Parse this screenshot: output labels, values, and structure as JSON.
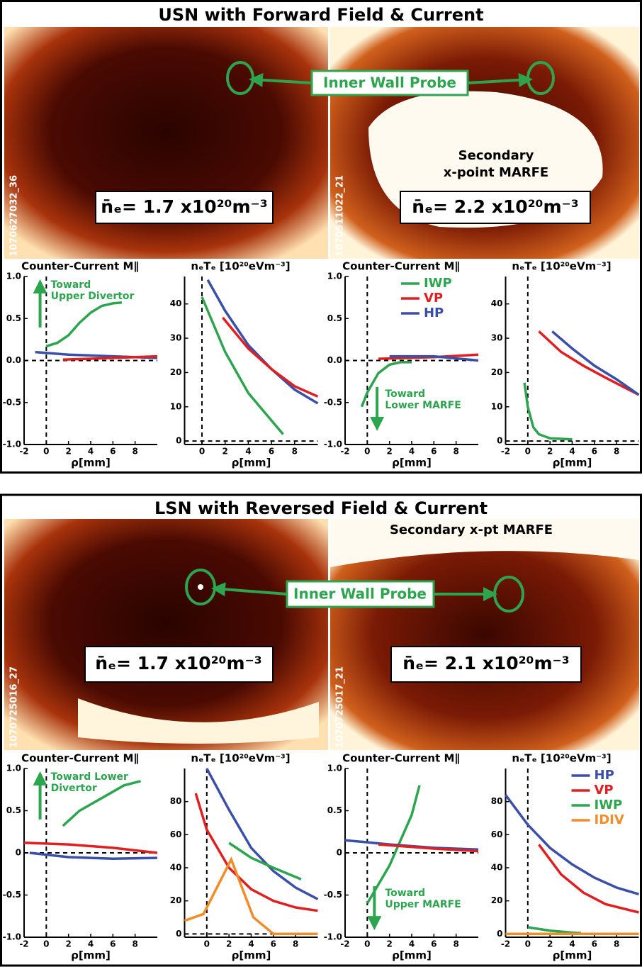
{
  "panels": [
    {
      "title": "USN with Forward Field & Current",
      "probe_label": "Inner Wall Probe",
      "images": [
        {
          "shot": "1070627032_36",
          "density": "n̄ₑ= 1.7 x10²⁰m⁻³"
        },
        {
          "shot": "1070511022_21",
          "density": "n̄ₑ= 2.2 x10²⁰m⁻³",
          "note": [
            "Secondary",
            "x-point MARFE"
          ]
        }
      ]
    },
    {
      "title": "LSN with Reversed Field & Current",
      "probe_label": "Inner Wall Probe",
      "images": [
        {
          "shot": "1070725016_27",
          "density": "n̄ₑ= 1.7 x10²⁰m⁻³"
        },
        {
          "shot": "1070725017_21",
          "density": "n̄ₑ= 2.1 x10²⁰m⁻³",
          "note": [
            "Secondary x-pt MARFE"
          ]
        }
      ]
    }
  ],
  "chart_data": [
    {
      "type": "line",
      "title": "Counter-Current M∥",
      "xlabel": "ρ[mm]",
      "xlim": [
        -2,
        10
      ],
      "ylim": [
        -1,
        1
      ],
      "xticks": [
        -2,
        0,
        2,
        4,
        6,
        8
      ],
      "yticks": [
        {
          "value": -1,
          "label": "-1.0"
        },
        {
          "value": -0.5,
          "label": "-0.5"
        },
        {
          "value": 0,
          "label": "0.0"
        },
        {
          "value": 0.5,
          "label": "0.5"
        },
        {
          "value": 1,
          "label": "1.0"
        }
      ],
      "annotation": [
        "Toward",
        "Upper Divertor"
      ],
      "series": [
        {
          "color": "#2da44e",
          "x": [
            0,
            1,
            2,
            3,
            4,
            5,
            6,
            6.8
          ],
          "values": [
            0.17,
            0.21,
            0.3,
            0.45,
            0.57,
            0.65,
            0.68,
            0.69
          ]
        },
        {
          "color": "#3a4fa8",
          "x": [
            -1,
            2,
            6,
            10
          ],
          "values": [
            0.1,
            0.07,
            0.05,
            0.03
          ]
        },
        {
          "color": "#e02020",
          "x": [
            1.5,
            6,
            10
          ],
          "values": [
            0.01,
            0.03,
            0.05
          ]
        }
      ]
    },
    {
      "type": "line",
      "title": "nₑTₑ [10²⁰eVm⁻³]",
      "xlabel": "ρ[mm]",
      "xlim": [
        -1.5,
        10
      ],
      "ylim": [
        -1,
        48
      ],
      "xticks": [
        0,
        2,
        4,
        6,
        8
      ],
      "yticks": [
        0,
        10,
        20,
        30,
        40
      ],
      "series": [
        {
          "color": "#3a4fa8",
          "x": [
            0.5,
            2,
            4,
            6,
            8,
            10
          ],
          "values": [
            47,
            38,
            28,
            21,
            15,
            11
          ]
        },
        {
          "color": "#e02020",
          "x": [
            1.8,
            4,
            6,
            8,
            10
          ],
          "values": [
            36,
            27,
            21,
            16,
            13
          ]
        },
        {
          "color": "#2da44e",
          "x": [
            0,
            2,
            4,
            6,
            7
          ],
          "values": [
            42,
            26,
            14,
            6,
            2
          ]
        }
      ]
    },
    {
      "type": "line",
      "title": "Counter-Current M∥",
      "xlabel": "ρ[mm]",
      "xlim": [
        -2,
        10
      ],
      "ylim": [
        -1,
        1
      ],
      "xticks": [
        -2,
        0,
        2,
        4,
        6,
        8
      ],
      "yticks": [
        {
          "value": -1,
          "label": "-1.0"
        },
        {
          "value": -0.5,
          "label": "-0.5"
        },
        {
          "value": 0,
          "label": "0.0"
        },
        {
          "value": 0.5,
          "label": "0.5"
        },
        {
          "value": 1,
          "label": "1.0"
        }
      ],
      "annotation": [
        "Toward",
        "Lower MARFE"
      ],
      "legend": "upper center",
      "series": [
        {
          "name": "IWP",
          "color": "#2da44e",
          "x": [
            -0.5,
            0,
            1,
            2,
            3,
            4
          ],
          "values": [
            -0.55,
            -0.38,
            -0.15,
            -0.05,
            -0.02,
            -0.02
          ]
        },
        {
          "name": "VP",
          "color": "#e02020",
          "x": [
            1,
            6,
            10
          ],
          "values": [
            0.02,
            0.04,
            0.07
          ]
        },
        {
          "name": "HP",
          "color": "#3a4fa8",
          "x": [
            2,
            6,
            10
          ],
          "values": [
            0.05,
            0.05,
            0
          ]
        }
      ]
    },
    {
      "type": "line",
      "title": "nₑTₑ [10²⁰eVm⁻³]",
      "xlabel": "ρ[mm]",
      "xlim": [
        -2,
        10
      ],
      "ylim": [
        -1,
        48
      ],
      "xticks": [
        -2,
        0,
        2,
        4,
        6,
        8
      ],
      "yticks": [
        0,
        10,
        20,
        30,
        40
      ],
      "series": [
        {
          "color": "#e02020",
          "x": [
            1,
            3,
            5,
            7,
            10
          ],
          "values": [
            32,
            26,
            22,
            18.5,
            13.5
          ]
        },
        {
          "color": "#3a4fa8",
          "x": [
            2.2,
            4,
            6,
            8,
            10
          ],
          "values": [
            32,
            27,
            22,
            18,
            13.5
          ]
        },
        {
          "color": "#2da44e",
          "x": [
            -0.3,
            0,
            0.5,
            1,
            2,
            4
          ],
          "values": [
            17,
            10,
            4,
            2,
            0.8,
            0.5
          ]
        }
      ]
    },
    {
      "type": "line",
      "title": "Counter-Current M∥",
      "xlabel": "ρ[mm]",
      "xlim": [
        -2,
        10
      ],
      "ylim": [
        -1,
        1
      ],
      "xticks": [
        -2,
        0,
        2,
        4,
        6,
        8
      ],
      "yticks": [
        {
          "value": -1,
          "label": "-1.0"
        },
        {
          "value": -0.5,
          "label": "-0.5"
        },
        0,
        {
          "value": 0.5,
          "label": "0.5"
        },
        {
          "value": 1,
          "label": "1.0"
        }
      ],
      "annotation": [
        "Toward Lower",
        "Divertor"
      ],
      "series": [
        {
          "color": "#2da44e",
          "x": [
            1.5,
            3,
            5,
            7,
            8.5
          ],
          "values": [
            0.32,
            0.5,
            0.65,
            0.8,
            0.85
          ]
        },
        {
          "color": "#e02020",
          "x": [
            -2,
            2,
            6,
            10
          ],
          "values": [
            0.12,
            0.1,
            0.06,
            0
          ]
        },
        {
          "color": "#3a4fa8",
          "x": [
            -1.5,
            2,
            6,
            10
          ],
          "values": [
            0,
            -0.05,
            -0.07,
            -0.06
          ]
        }
      ]
    },
    {
      "type": "line",
      "title": "nₑTₑ [10²⁰eVm⁻³]",
      "xlabel": "ρ[mm]",
      "xlim": [
        -2,
        10
      ],
      "ylim": [
        -2,
        100
      ],
      "xticks": [
        0,
        2,
        4,
        6,
        8
      ],
      "yticks": [
        0,
        20,
        40,
        60,
        80
      ],
      "series": [
        {
          "color": "#3a4fa8",
          "x": [
            0,
            2,
            4,
            6,
            8,
            10
          ],
          "values": [
            100,
            75,
            52,
            38,
            28,
            21
          ]
        },
        {
          "color": "#e02020",
          "x": [
            -1,
            0,
            2,
            4,
            6,
            8,
            10
          ],
          "values": [
            85,
            63,
            40,
            27,
            20,
            16,
            14
          ]
        },
        {
          "color": "#2da44e",
          "x": [
            2,
            4,
            6,
            8.5
          ],
          "values": [
            55,
            46,
            40,
            33
          ]
        },
        {
          "color": "#f28c28",
          "x": [
            -2,
            -0.3,
            2.2,
            4.2,
            6,
            10
          ],
          "values": [
            8,
            12,
            45,
            10,
            0,
            0
          ]
        }
      ]
    },
    {
      "type": "line",
      "title": "Counter-Current M∥",
      "xlabel": "ρ[mm]",
      "xlim": [
        -2,
        10
      ],
      "ylim": [
        -1,
        1
      ],
      "xticks": [
        -2,
        0,
        2,
        4,
        6,
        8
      ],
      "yticks": [
        {
          "value": -1,
          "label": "-1.0"
        },
        {
          "value": -0.5,
          "label": "-0.5"
        },
        0,
        {
          "value": 0.5,
          "label": "0.5"
        },
        {
          "value": 1,
          "label": "1.0"
        }
      ],
      "annotation": [
        "Toward",
        "Upper MARFE"
      ],
      "series": [
        {
          "color": "#2da44e",
          "x": [
            0,
            2,
            3,
            4,
            4.7
          ],
          "values": [
            -0.6,
            -0.15,
            0.15,
            0.45,
            0.8
          ]
        },
        {
          "color": "#3a4fa8",
          "x": [
            -2,
            2,
            6,
            10
          ],
          "values": [
            0.15,
            0.1,
            0.06,
            0.04
          ]
        },
        {
          "color": "#e02020",
          "x": [
            1,
            6,
            10
          ],
          "values": [
            0.1,
            0.05,
            0.02
          ]
        }
      ]
    },
    {
      "type": "line",
      "title": "nₑTₑ [10²⁰eVm⁻³]",
      "xlabel": "ρ[mm]",
      "xlim": [
        -2,
        10
      ],
      "ylim": [
        -2,
        100
      ],
      "xticks": [
        -2,
        0,
        2,
        4,
        6,
        8
      ],
      "yticks": [
        0,
        20,
        40,
        60,
        80
      ],
      "legend": "upper right",
      "series": [
        {
          "name": "HP",
          "color": "#3a4fa8",
          "x": [
            -2,
            0,
            2,
            4,
            6,
            8,
            10
          ],
          "values": [
            84,
            66,
            52,
            42,
            34,
            28,
            24
          ]
        },
        {
          "name": "VP",
          "color": "#e02020",
          "x": [
            1,
            3,
            5,
            7,
            10
          ],
          "values": [
            54,
            36,
            25,
            18,
            13
          ]
        },
        {
          "name": "IWP",
          "color": "#2da44e",
          "x": [
            0,
            2,
            4,
            4.8
          ],
          "values": [
            4,
            2,
            0.8,
            0.5
          ]
        },
        {
          "name": "IDIV",
          "color": "#f28c28",
          "x": [
            -2,
            10
          ],
          "values": [
            0,
            0
          ]
        }
      ]
    }
  ]
}
